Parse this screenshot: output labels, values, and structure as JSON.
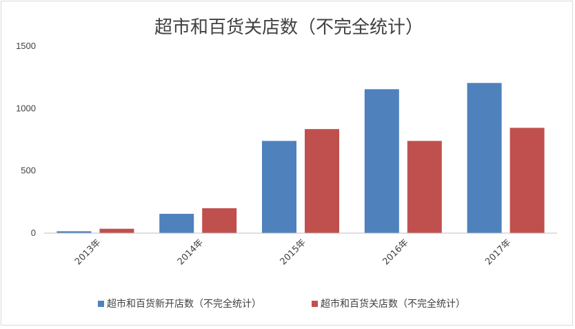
{
  "chart_data": {
    "type": "bar",
    "title": "超市和百货关店数（不完全统计）",
    "categories": [
      "2013年",
      "2014年",
      "2015年",
      "2016年",
      "2017年"
    ],
    "series": [
      {
        "name": "超市和百货新开店数（不完全统计）",
        "color": "#4f81bd",
        "values": [
          15,
          155,
          740,
          1155,
          1205
        ]
      },
      {
        "name": "超市和百货关店数（不完全统计）",
        "color": "#c0504d",
        "values": [
          35,
          200,
          835,
          740,
          845
        ]
      }
    ],
    "ylim": [
      0,
      1500
    ],
    "yticks": [
      0,
      500,
      1000,
      1500
    ],
    "grid": false,
    "legend_position": "bottom"
  }
}
